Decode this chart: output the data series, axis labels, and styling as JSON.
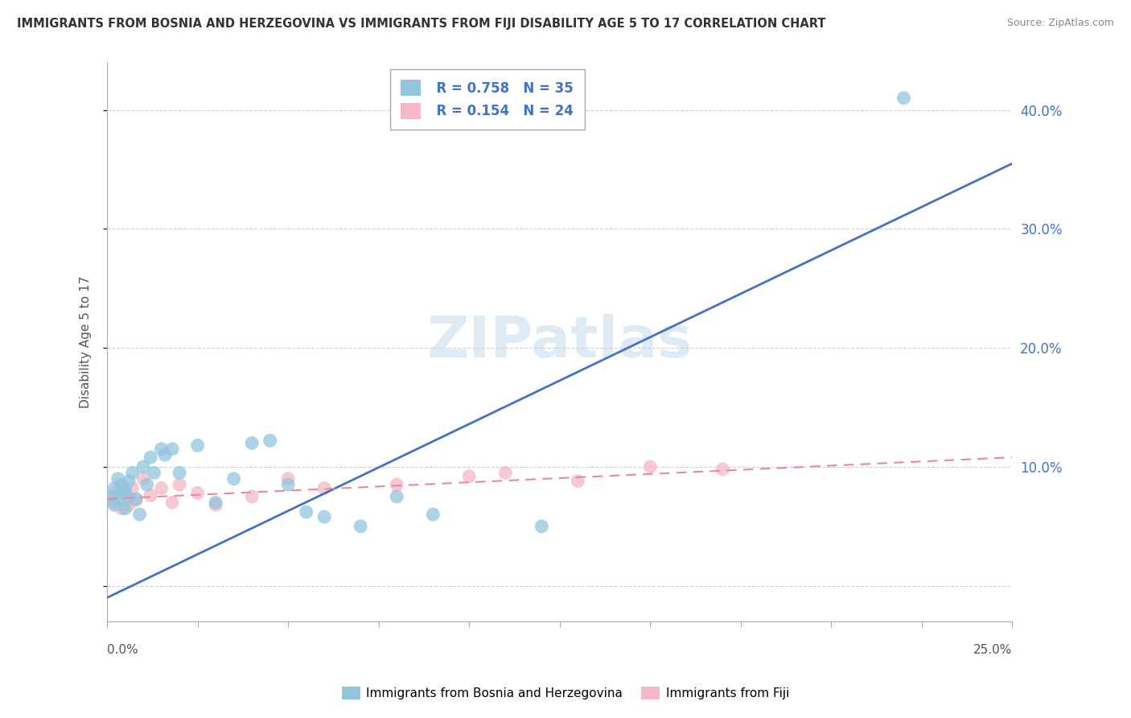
{
  "title": "IMMIGRANTS FROM BOSNIA AND HERZEGOVINA VS IMMIGRANTS FROM FIJI DISABILITY AGE 5 TO 17 CORRELATION CHART",
  "source": "Source: ZipAtlas.com",
  "ylabel": "Disability Age 5 to 17",
  "right_yticks": [
    0.0,
    0.1,
    0.2,
    0.3,
    0.4
  ],
  "right_yticklabels": [
    "",
    "10.0%",
    "20.0%",
    "30.0%",
    "40.0%"
  ],
  "xlim": [
    0.0,
    0.25
  ],
  "ylim": [
    -0.03,
    0.44
  ],
  "bosnia_R": 0.758,
  "bosnia_N": 35,
  "fiji_R": 0.154,
  "fiji_N": 24,
  "bosnia_color": "#92c5de",
  "fiji_color": "#f4b8c8",
  "bosnia_line_color": "#4472c4",
  "fiji_line_color": "#e88a9a",
  "background_color": "#ffffff",
  "grid_color": "#d0d0d0",
  "watermark": "ZIPatlas",
  "bosnia_x": [
    0.001,
    0.002,
    0.002,
    0.003,
    0.003,
    0.004,
    0.004,
    0.005,
    0.005,
    0.006,
    0.006,
    0.007,
    0.008,
    0.009,
    0.01,
    0.011,
    0.012,
    0.013,
    0.015,
    0.016,
    0.018,
    0.02,
    0.025,
    0.03,
    0.035,
    0.04,
    0.045,
    0.05,
    0.055,
    0.06,
    0.07,
    0.08,
    0.09,
    0.12,
    0.22
  ],
  "bosnia_y": [
    0.075,
    0.082,
    0.068,
    0.072,
    0.09,
    0.078,
    0.085,
    0.065,
    0.08,
    0.074,
    0.088,
    0.095,
    0.073,
    0.06,
    0.1,
    0.085,
    0.108,
    0.095,
    0.115,
    0.11,
    0.115,
    0.095,
    0.118,
    0.07,
    0.09,
    0.12,
    0.122,
    0.085,
    0.062,
    0.058,
    0.05,
    0.075,
    0.06,
    0.05,
    0.41
  ],
  "fiji_x": [
    0.001,
    0.002,
    0.003,
    0.004,
    0.005,
    0.006,
    0.007,
    0.008,
    0.01,
    0.012,
    0.015,
    0.018,
    0.02,
    0.025,
    0.03,
    0.04,
    0.05,
    0.06,
    0.08,
    0.1,
    0.11,
    0.13,
    0.15,
    0.17
  ],
  "fiji_y": [
    0.075,
    0.07,
    0.08,
    0.065,
    0.078,
    0.068,
    0.082,
    0.072,
    0.09,
    0.076,
    0.082,
    0.07,
    0.085,
    0.078,
    0.068,
    0.075,
    0.09,
    0.082,
    0.085,
    0.092,
    0.095,
    0.088,
    0.1,
    0.098
  ],
  "bos_line_x0": 0.0,
  "bos_line_y0": -0.01,
  "bos_line_x1": 0.25,
  "bos_line_y1": 0.355,
  "fij_line_x0": 0.0,
  "fij_line_y0": 0.073,
  "fij_line_x1": 0.25,
  "fij_line_y1": 0.108
}
